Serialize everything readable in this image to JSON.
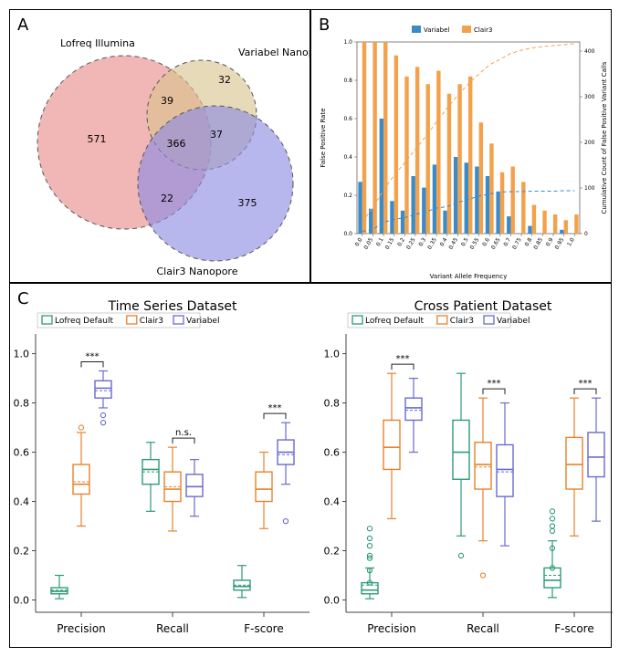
{
  "panelA": {
    "tag": "A",
    "label_lofreq": "Lofreq Illumina",
    "label_variabel": "Variabel Nanopore",
    "label_clair3": "Clair3 Nanopore",
    "n_lofreq_only": "571",
    "n_variabel_only": "32",
    "n_clair3_only": "375",
    "n_lofreq_variabel": "39",
    "n_variabel_clair3": "37",
    "n_lofreq_clair3": "22",
    "n_all": "366",
    "color_lofreq": "#e98989",
    "color_variabel": "#d8c38d",
    "color_clair3": "#8a8ae4",
    "stroke": "#555",
    "stroke_dash": "5,4",
    "fontsize_label": 11,
    "fontsize_count": 11
  },
  "panelB": {
    "tag": "B",
    "x_label": "Variant Allele Frequency",
    "y_left_label": "False Positive Rate",
    "y_right_label": "Cumulative Count of False Positive Variant Calls",
    "legend_variabel": "Variabel",
    "legend_clair3": "Clair3",
    "color_variabel": "#3b8bc7",
    "color_clair3": "#f4a14c",
    "x_ticks": [
      "0.0",
      "0.05",
      "0.1",
      "0.15",
      "0.2",
      "0.25",
      "0.3",
      "0.35",
      "0.4",
      "0.45",
      "0.5",
      "0.55",
      "0.6",
      "0.65",
      "0.7",
      "0.75",
      "0.8",
      "0.85",
      "0.9",
      "0.95",
      "1.0"
    ],
    "y_left_ticks": [
      "0.0",
      "0.2",
      "0.4",
      "0.6",
      "0.8",
      "1.0"
    ],
    "y_right_ticks": [
      "0",
      "100",
      "200",
      "300",
      "400"
    ],
    "values_variabel": [
      0.27,
      0.13,
      0.6,
      0.17,
      0.12,
      0.3,
      0.24,
      0.36,
      0.12,
      0.4,
      0.37,
      0.35,
      0.3,
      0.22,
      0.09,
      0.0,
      0.04,
      0.0,
      0.0,
      0.02,
      0.0
    ],
    "values_clair3": [
      1.0,
      1.0,
      1.0,
      0.93,
      0.82,
      0.87,
      0.78,
      0.85,
      0.73,
      0.78,
      0.82,
      0.58,
      0.47,
      0.32,
      0.35,
      0.27,
      0.15,
      0.12,
      0.1,
      0.07,
      0.1
    ],
    "cumulative_variabel": [
      5,
      9,
      25,
      31,
      35,
      42,
      48,
      56,
      59,
      68,
      75,
      82,
      87,
      91,
      92,
      92,
      93,
      93,
      93,
      94,
      94
    ],
    "cumulative_clair3": [
      25,
      58,
      95,
      128,
      155,
      185,
      213,
      245,
      275,
      303,
      328,
      350,
      370,
      382,
      395,
      402,
      407,
      410,
      412,
      414,
      416
    ],
    "y_right_max": 420,
    "fontsize_axis": 7,
    "fontsize_tick": 6
  },
  "panelC": {
    "tag": "C",
    "title_left": "Time Series Dataset",
    "title_right": "Cross Patient Dataset",
    "legend_lofreq": "Lofreq Default",
    "legend_clair3": "Clair3",
    "legend_variabel": "Variabel",
    "color_lofreq": "#2e9b78",
    "color_clair3": "#e8822c",
    "color_variabel": "#6a6ad0",
    "metrics": [
      "Precision",
      "Recall",
      "F-score"
    ],
    "sig_labels": {
      "sig": "***",
      "ns": "n.s."
    },
    "y_ticks": [
      "0.0",
      "0.2",
      "0.4",
      "0.6",
      "0.8",
      "1.0"
    ],
    "fontsize_title": 14,
    "fontsize_tick": 11,
    "fontsize_legend": 10,
    "boxes_left": {
      "Precision": {
        "lofreq": {
          "q1": 0.025,
          "med": 0.035,
          "q3": 0.05,
          "lw": 0.005,
          "uw": 0.1,
          "mean": 0.04,
          "out": []
        },
        "clair3": {
          "q1": 0.43,
          "med": 0.47,
          "q3": 0.55,
          "lw": 0.3,
          "uw": 0.68,
          "mean": 0.48,
          "out": [
            0.7
          ]
        },
        "variabel": {
          "q1": 0.82,
          "med": 0.86,
          "q3": 0.89,
          "lw": 0.78,
          "uw": 0.93,
          "mean": 0.85,
          "out": [
            0.72,
            0.75
          ]
        },
        "sig": "sig"
      },
      "Recall": {
        "lofreq": {
          "q1": 0.47,
          "med": 0.53,
          "q3": 0.57,
          "lw": 0.36,
          "uw": 0.64,
          "mean": 0.52,
          "out": []
        },
        "clair3": {
          "q1": 0.4,
          "med": 0.45,
          "q3": 0.52,
          "lw": 0.28,
          "uw": 0.62,
          "mean": 0.46,
          "out": []
        },
        "variabel": {
          "q1": 0.42,
          "med": 0.46,
          "q3": 0.51,
          "lw": 0.34,
          "uw": 0.57,
          "mean": 0.46,
          "out": []
        },
        "sig": "ns"
      },
      "F-score": {
        "lofreq": {
          "q1": 0.04,
          "med": 0.055,
          "q3": 0.08,
          "lw": 0.01,
          "uw": 0.14,
          "mean": 0.06,
          "out": []
        },
        "clair3": {
          "q1": 0.4,
          "med": 0.45,
          "q3": 0.52,
          "lw": 0.29,
          "uw": 0.6,
          "mean": 0.45,
          "out": []
        },
        "variabel": {
          "q1": 0.55,
          "med": 0.6,
          "q3": 0.65,
          "lw": 0.47,
          "uw": 0.72,
          "mean": 0.59,
          "out": [
            0.32
          ]
        },
        "sig": "sig"
      }
    },
    "boxes_right": {
      "Precision": {
        "lofreq": {
          "q1": 0.025,
          "med": 0.04,
          "q3": 0.07,
          "lw": 0.005,
          "uw": 0.13,
          "mean": 0.06,
          "out": [
            0.07,
            0.12,
            0.18,
            0.22,
            0.25,
            0.29,
            0.17
          ]
        },
        "clair3": {
          "q1": 0.53,
          "med": 0.62,
          "q3": 0.73,
          "lw": 0.33,
          "uw": 0.92,
          "mean": 0.62,
          "out": []
        },
        "variabel": {
          "q1": 0.73,
          "med": 0.78,
          "q3": 0.82,
          "lw": 0.6,
          "uw": 0.9,
          "mean": 0.77,
          "out": []
        },
        "sig": "sig"
      },
      "Recall": {
        "lofreq": {
          "q1": 0.49,
          "med": 0.6,
          "q3": 0.73,
          "lw": 0.26,
          "uw": 0.92,
          "mean": 0.6,
          "out": [
            0.18
          ]
        },
        "clair3": {
          "q1": 0.45,
          "med": 0.55,
          "q3": 0.64,
          "lw": 0.24,
          "uw": 0.82,
          "mean": 0.54,
          "out": [
            0.1
          ]
        },
        "variabel": {
          "q1": 0.42,
          "med": 0.53,
          "q3": 0.63,
          "lw": 0.22,
          "uw": 0.8,
          "mean": 0.52,
          "out": []
        },
        "sig": "sig"
      },
      "F-score": {
        "lofreq": {
          "q1": 0.05,
          "med": 0.08,
          "q3": 0.13,
          "lw": 0.01,
          "uw": 0.24,
          "mean": 0.1,
          "out": [
            0.13,
            0.21,
            0.28,
            0.3,
            0.33,
            0.36
          ]
        },
        "clair3": {
          "q1": 0.45,
          "med": 0.55,
          "q3": 0.66,
          "lw": 0.26,
          "uw": 0.82,
          "mean": 0.55,
          "out": []
        },
        "variabel": {
          "q1": 0.5,
          "med": 0.58,
          "q3": 0.68,
          "lw": 0.32,
          "uw": 0.82,
          "mean": 0.58,
          "out": []
        },
        "sig": "sig"
      }
    }
  }
}
